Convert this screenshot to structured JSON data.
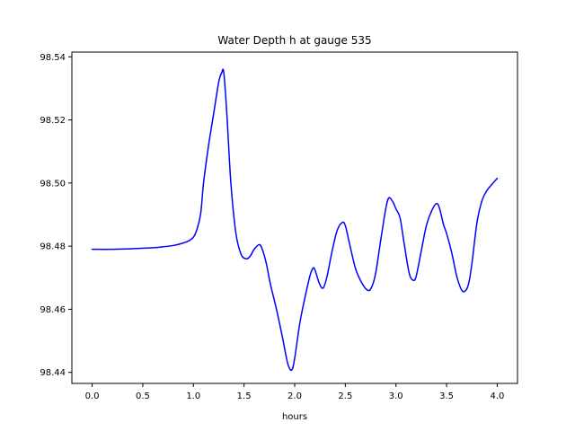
{
  "chart_data": {
    "type": "line",
    "title": "Water Depth h at gauge 535",
    "xlabel": "hours",
    "ylabel": "",
    "xlim": [
      -0.2,
      4.2
    ],
    "ylim": [
      98.4365,
      98.5415
    ],
    "xticks": [
      0.0,
      0.5,
      1.0,
      1.5,
      2.0,
      2.5,
      3.0,
      3.5,
      4.0
    ],
    "xtick_labels": [
      "0.0",
      "0.5",
      "1.0",
      "1.5",
      "2.0",
      "2.5",
      "3.0",
      "3.5",
      "4.0"
    ],
    "yticks": [
      98.44,
      98.46,
      98.48,
      98.5,
      98.52,
      98.54
    ],
    "ytick_labels": [
      "98.44",
      "98.46",
      "98.48",
      "98.50",
      "98.52",
      "98.54"
    ],
    "grid": false,
    "legend": "none",
    "series": [
      {
        "color": "#0000ff",
        "x": [
          0.0,
          0.2,
          0.4,
          0.6,
          0.7,
          0.8,
          0.9,
          0.97,
          1.02,
          1.07,
          1.1,
          1.15,
          1.2,
          1.25,
          1.28,
          1.3,
          1.33,
          1.37,
          1.42,
          1.47,
          1.52,
          1.56,
          1.6,
          1.65,
          1.68,
          1.72,
          1.76,
          1.82,
          1.88,
          1.93,
          1.97,
          2.0,
          2.05,
          2.1,
          2.15,
          2.18,
          2.2,
          2.24,
          2.28,
          2.32,
          2.37,
          2.42,
          2.47,
          2.5,
          2.54,
          2.6,
          2.66,
          2.72,
          2.76,
          2.8,
          2.85,
          2.9,
          2.93,
          2.97,
          3.0,
          3.04,
          3.08,
          3.13,
          3.17,
          3.2,
          3.25,
          3.3,
          3.35,
          3.4,
          3.43,
          3.47,
          3.5,
          3.55,
          3.6,
          3.65,
          3.69,
          3.72,
          3.75,
          3.8,
          3.85,
          3.9,
          3.95,
          4.0
        ],
        "y": [
          98.479,
          98.479,
          98.4792,
          98.4795,
          98.4798,
          98.4802,
          98.481,
          98.482,
          98.484,
          98.49,
          98.5,
          98.512,
          98.522,
          98.532,
          98.535,
          98.535,
          98.522,
          98.5,
          98.484,
          98.4775,
          98.476,
          98.4768,
          98.479,
          98.4805,
          98.479,
          98.4745,
          98.468,
          98.46,
          98.451,
          98.443,
          98.4407,
          98.4445,
          98.4555,
          98.4635,
          98.4705,
          98.473,
          98.4725,
          98.4685,
          98.4667,
          98.4705,
          98.4785,
          98.485,
          98.4875,
          98.4865,
          98.481,
          98.473,
          98.4685,
          98.466,
          98.467,
          98.4715,
          98.482,
          98.492,
          98.4953,
          98.494,
          98.4918,
          98.489,
          98.481,
          98.4715,
          98.4692,
          98.4705,
          98.4785,
          98.4865,
          98.491,
          98.4935,
          98.492,
          98.4868,
          98.484,
          98.478,
          98.4705,
          98.466,
          98.466,
          98.4685,
          98.4745,
          98.4875,
          98.4945,
          98.4977,
          98.4997,
          98.5015
        ]
      }
    ]
  }
}
